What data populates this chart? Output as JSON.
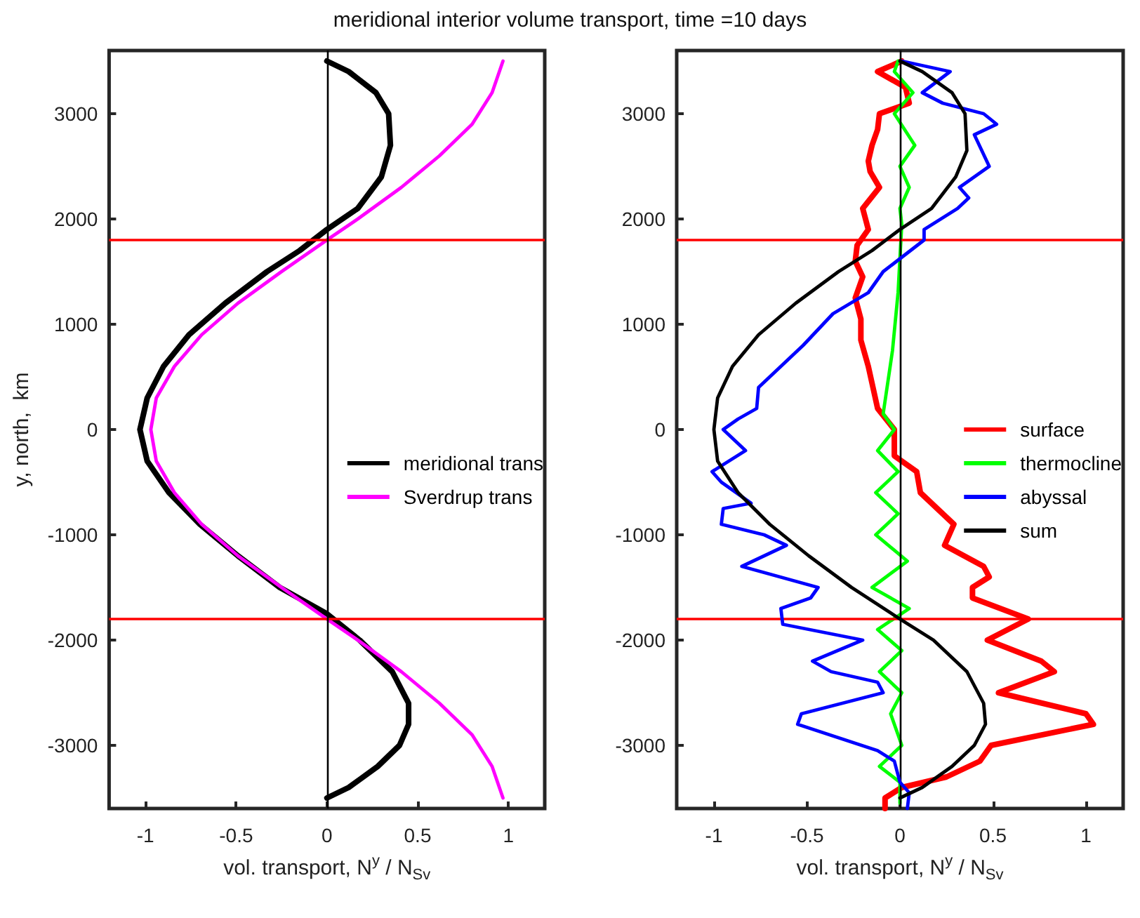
{
  "chart_data": [
    {
      "type": "line",
      "title": "meridional interior volume transport, time =10 days",
      "xlabel": "vol. transport, N$^{y}$ / N$_{Sv}$",
      "ylabel": "y, north,  km",
      "xlim": [
        -1.2,
        1.2
      ],
      "xticks": [
        -1,
        -0.5,
        0,
        0.5,
        1
      ],
      "ylim": [
        -3600,
        3600
      ],
      "yticks": [
        -3000,
        -2000,
        -1000,
        0,
        1000,
        2000,
        3000
      ],
      "grid": false,
      "legend": "right",
      "marker": "none",
      "line_style": "solid",
      "ref_lines": [
        {
          "axis": "y",
          "value": 1800,
          "color": "#ff0000"
        },
        {
          "axis": "y",
          "value": -1800,
          "color": "#ff0000"
        },
        {
          "axis": "x",
          "value": 0,
          "color": "#000000"
        }
      ],
      "series": [
        {
          "name": "meridional trans",
          "color": "#000000",
          "x": [
            0,
            0.12,
            0.28,
            0.4,
            0.45,
            0.45,
            0.36,
            0.18,
            0,
            -0.26,
            -0.49,
            -0.7,
            -0.87,
            -0.99,
            -1.03,
            -0.99,
            -0.9,
            -0.76,
            -0.56,
            -0.33,
            -0.15,
            0,
            0.17,
            0.3,
            0.35,
            0.34,
            0.27,
            0.12,
            0
          ],
          "values": [
            -3500,
            -3400,
            -3200,
            -3000,
            -2800,
            -2600,
            -2300,
            -2000,
            -1750,
            -1500,
            -1200,
            -900,
            -600,
            -300,
            0,
            300,
            600,
            900,
            1200,
            1500,
            1700,
            1900,
            2100,
            2400,
            2700,
            3000,
            3200,
            3400,
            3500
          ]
        },
        {
          "name": "Sverdrup trans",
          "color": "#ff00ff",
          "x": [
            0.97,
            0.91,
            0.8,
            0.62,
            0.41,
            0.17,
            0,
            -0.25,
            -0.49,
            -0.69,
            -0.84,
            -0.94,
            -0.97,
            -0.94,
            -0.84,
            -0.69,
            -0.49,
            -0.25,
            0,
            0.17,
            0.41,
            0.62,
            0.8,
            0.91,
            0.97
          ],
          "values": [
            -3500,
            -3200,
            -2900,
            -2600,
            -2300,
            -2000,
            -1800,
            -1500,
            -1200,
            -900,
            -600,
            -300,
            0,
            300,
            600,
            900,
            1200,
            1500,
            1800,
            2000,
            2300,
            2600,
            2900,
            3200,
            3500
          ]
        }
      ]
    },
    {
      "type": "line",
      "xlabel": "vol. transport, N$^{y}$ / N$_{Sv}$",
      "xlim": [
        -1.2,
        1.2
      ],
      "xticks": [
        -1,
        -0.5,
        0,
        0.5,
        1
      ],
      "ylim": [
        -3600,
        3600
      ],
      "yticks": [
        -3000,
        -2000,
        -1000,
        0,
        1000,
        2000,
        3000
      ],
      "grid": false,
      "legend": "right",
      "marker": "none",
      "line_style": "solid",
      "ref_lines": [
        {
          "axis": "y",
          "value": 1800,
          "color": "#ff0000"
        },
        {
          "axis": "y",
          "value": -1800,
          "color": "#ff0000"
        },
        {
          "axis": "x",
          "value": 0,
          "color": "#000000"
        }
      ],
      "series": [
        {
          "name": "surface",
          "color": "#ff0000",
          "x": [
            -0.08,
            -0.08,
            0.01,
            0.25,
            0.43,
            0.49,
            1.04,
            1.0,
            0.53,
            0.83,
            0.76,
            0.47,
            0.69,
            0.39,
            0.39,
            0.48,
            0.45,
            0.24,
            0.29,
            0.2,
            0.11,
            0.09,
            -0.03,
            -0.03,
            -0.12,
            -0.17,
            -0.21,
            -0.21,
            -0.24,
            -0.2,
            -0.24,
            -0.23,
            -0.17,
            -0.2,
            -0.11,
            -0.16,
            -0.17,
            -0.15,
            -0.12,
            -0.11,
            0.05,
            0.03,
            -0.12,
            0.01
          ],
          "values": [
            -3600,
            -3500,
            -3400,
            -3300,
            -3150,
            -3000,
            -2800,
            -2700,
            -2500,
            -2300,
            -2200,
            -2000,
            -1800,
            -1600,
            -1500,
            -1400,
            -1300,
            -1100,
            -900,
            -750,
            -600,
            -400,
            -250,
            0,
            200,
            600,
            850,
            1050,
            1250,
            1450,
            1600,
            1750,
            1900,
            2100,
            2300,
            2450,
            2550,
            2700,
            2850,
            3000,
            3100,
            3250,
            3400,
            3500
          ]
        },
        {
          "name": "thermocline",
          "color": "#00ff00",
          "x": [
            0,
            0,
            -0.11,
            0.01,
            -0.05,
            0.01,
            -0.11,
            0.01,
            -0.12,
            0.05,
            -0.15,
            0.04,
            -0.13,
            -0.01,
            -0.13,
            -0.01,
            -0.12,
            -0.03,
            -0.09,
            -0.04,
            -0.01,
            0.01,
            0,
            0.05,
            0,
            0.08,
            -0.03,
            0.07,
            -0.03,
            -0.01
          ],
          "values": [
            -3550,
            -3350,
            -3200,
            -3000,
            -2700,
            -2500,
            -2300,
            -2100,
            -1900,
            -1700,
            -1500,
            -1250,
            -1000,
            -800,
            -600,
            -400,
            -200,
            0,
            150,
            750,
            1300,
            1950,
            2100,
            2300,
            2500,
            2700,
            3000,
            3200,
            3400,
            3500
          ]
        },
        {
          "name": "abyssal",
          "color": "#0000ff",
          "x": [
            0.04,
            0.05,
            0,
            -0.03,
            -0.12,
            -0.55,
            -0.53,
            -0.09,
            -0.12,
            -0.37,
            -0.47,
            -0.2,
            -0.63,
            -0.64,
            -0.48,
            -0.44,
            -0.85,
            -0.61,
            -0.73,
            -0.96,
            -0.95,
            -0.8,
            -0.96,
            -1.01,
            -0.83,
            -0.95,
            -0.87,
            -0.77,
            -0.76,
            -0.64,
            -0.52,
            -0.36,
            -0.17,
            -0.09,
            0.13,
            0.13,
            0.31,
            0.37,
            0.32,
            0.48,
            0.4,
            0.52,
            0.45,
            0.23,
            0.12,
            0.27,
            0.01
          ],
          "values": [
            -3600,
            -3450,
            -3350,
            -3150,
            -3050,
            -2800,
            -2700,
            -2500,
            -2400,
            -2300,
            -2200,
            -2000,
            -1850,
            -1700,
            -1600,
            -1500,
            -1300,
            -1100,
            -1000,
            -900,
            -750,
            -700,
            -500,
            -400,
            -200,
            0,
            100,
            200,
            400,
            600,
            800,
            1100,
            1300,
            1500,
            1800,
            1900,
            2100,
            2200,
            2300,
            2500,
            2800,
            2900,
            3000,
            3100,
            3200,
            3400,
            3500
          ]
        },
        {
          "name": "sum",
          "color": "#000000",
          "x": [
            0,
            0.12,
            0.28,
            0.4,
            0.46,
            0.45,
            0.36,
            0.18,
            0,
            -0.26,
            -0.49,
            -0.7,
            -0.87,
            -0.98,
            -1.0,
            -0.98,
            -0.9,
            -0.76,
            -0.56,
            -0.33,
            -0.15,
            0,
            0.17,
            0.3,
            0.36,
            0.35,
            0.28,
            0.12,
            0
          ],
          "values": [
            -3500,
            -3400,
            -3200,
            -3000,
            -2800,
            -2600,
            -2300,
            -2000,
            -1800,
            -1500,
            -1200,
            -900,
            -600,
            -300,
            0,
            300,
            600,
            900,
            1200,
            1500,
            1700,
            1900,
            2100,
            2400,
            2650,
            3000,
            3200,
            3400,
            3500
          ]
        }
      ]
    }
  ]
}
